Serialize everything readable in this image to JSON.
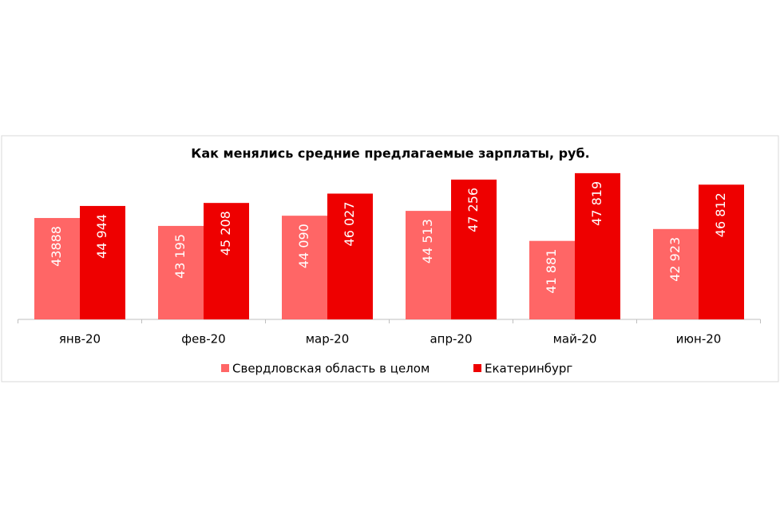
{
  "chart_data": {
    "type": "bar",
    "title": "Как менялись средние предлагаемые зарплаты, руб.",
    "categories": [
      "янв-20",
      "фев-20",
      "мар-20",
      "апр-20",
      "май-20",
      "июн-20"
    ],
    "series": [
      {
        "name": "Свердловская область в целом",
        "color": "#ff6666",
        "values": [
          43888,
          43195,
          44090,
          44513,
          41881,
          42923
        ],
        "value_labels": [
          "43888",
          "43 195",
          "44 090",
          "44 513",
          "41 881",
          "42 923"
        ]
      },
      {
        "name": "Екатеринбург",
        "color": "#ee0000",
        "values": [
          44944,
          45208,
          46027,
          47256,
          47819,
          46812
        ],
        "value_labels": [
          "44 944",
          "45 208",
          "46 027",
          "47 256",
          "47 819",
          "46 812"
        ]
      }
    ],
    "ylim": [
      35000,
      49000
    ]
  }
}
